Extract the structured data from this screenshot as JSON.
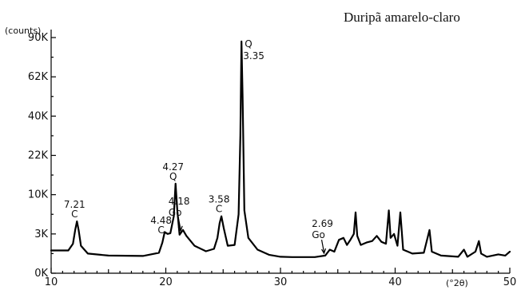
{
  "chart_data": {
    "type": "line",
    "title": "Duripã amarelo-claro",
    "y_unit_label": "(counts)",
    "x_unit_label": "(°2θ)",
    "xlim": [
      10,
      50
    ],
    "x_ticks": [
      10,
      20,
      30,
      40,
      50
    ],
    "y_tick_labels": [
      "0K",
      "3K",
      "10K",
      "22K",
      "40K",
      "62K",
      "90K"
    ],
    "grid": false,
    "series": [
      {
        "values_note": "y given as position on the printed (non-linear) intensity scale, tick index units: 0=0K,1=3K,2=10K,3=22K,4=40K,5=62K,6=90K",
        "points": [
          [
            10,
            0.58
          ],
          [
            11.5,
            0.58
          ],
          [
            11.9,
            0.75
          ],
          [
            12.1,
            1.1
          ],
          [
            12.25,
            1.32
          ],
          [
            12.4,
            1.1
          ],
          [
            12.6,
            0.7
          ],
          [
            13.2,
            0.5
          ],
          [
            15,
            0.45
          ],
          [
            18,
            0.44
          ],
          [
            19.4,
            0.52
          ],
          [
            19.7,
            0.78
          ],
          [
            19.9,
            1.05
          ],
          [
            20.15,
            1.0
          ],
          [
            20.4,
            1.02
          ],
          [
            20.7,
            1.45
          ],
          [
            20.85,
            2.28
          ],
          [
            21.0,
            1.6
          ],
          [
            21.2,
            0.98
          ],
          [
            21.5,
            1.1
          ],
          [
            21.8,
            0.95
          ],
          [
            22.5,
            0.7
          ],
          [
            23.5,
            0.56
          ],
          [
            24.2,
            0.62
          ],
          [
            24.5,
            0.9
          ],
          [
            24.7,
            1.28
          ],
          [
            24.85,
            1.45
          ],
          [
            25.05,
            1.15
          ],
          [
            25.4,
            0.7
          ],
          [
            26.0,
            0.72
          ],
          [
            26.35,
            1.5
          ],
          [
            26.5,
            3.5
          ],
          [
            26.6,
            5.9
          ],
          [
            26.7,
            4.5
          ],
          [
            26.85,
            1.6
          ],
          [
            27.2,
            0.9
          ],
          [
            28,
            0.6
          ],
          [
            29,
            0.47
          ],
          [
            30,
            0.42
          ],
          [
            31,
            0.41
          ],
          [
            33,
            0.41
          ],
          [
            33.9,
            0.45
          ],
          [
            34.3,
            0.6
          ],
          [
            34.7,
            0.55
          ],
          [
            35.1,
            0.85
          ],
          [
            35.5,
            0.9
          ],
          [
            35.8,
            0.72
          ],
          [
            36.1,
            0.85
          ],
          [
            36.4,
            1.0
          ],
          [
            36.55,
            1.55
          ],
          [
            36.7,
            0.95
          ],
          [
            37.0,
            0.72
          ],
          [
            37.5,
            0.78
          ],
          [
            38.0,
            0.82
          ],
          [
            38.4,
            0.95
          ],
          [
            38.8,
            0.8
          ],
          [
            39.2,
            0.75
          ],
          [
            39.45,
            1.6
          ],
          [
            39.6,
            0.9
          ],
          [
            39.9,
            1.0
          ],
          [
            40.2,
            0.7
          ],
          [
            40.45,
            1.55
          ],
          [
            40.7,
            0.6
          ],
          [
            41.5,
            0.5
          ],
          [
            42.5,
            0.52
          ],
          [
            43.0,
            1.1
          ],
          [
            43.2,
            0.55
          ],
          [
            44.0,
            0.45
          ],
          [
            45.5,
            0.42
          ],
          [
            46.0,
            0.6
          ],
          [
            46.3,
            0.42
          ],
          [
            47.0,
            0.55
          ],
          [
            47.3,
            0.82
          ],
          [
            47.5,
            0.5
          ],
          [
            48.0,
            0.42
          ],
          [
            49.0,
            0.48
          ],
          [
            49.6,
            0.45
          ],
          [
            50,
            0.55
          ]
        ]
      }
    ],
    "annotations": [
      {
        "phase": "C",
        "d": "7.21",
        "x": 12.25
      },
      {
        "phase": "C",
        "d": "4.48",
        "x": 19.8
      },
      {
        "phase": "Q",
        "d": "4.27",
        "x": 20.85
      },
      {
        "phase": "Go",
        "d": "4.18",
        "x": 21.3
      },
      {
        "phase": "C",
        "d": "3.58",
        "x": 24.85
      },
      {
        "phase": "Q",
        "d": "3.35",
        "x": 26.6
      },
      {
        "phase": "Go",
        "d": "2.69",
        "x": 33.8
      }
    ]
  }
}
